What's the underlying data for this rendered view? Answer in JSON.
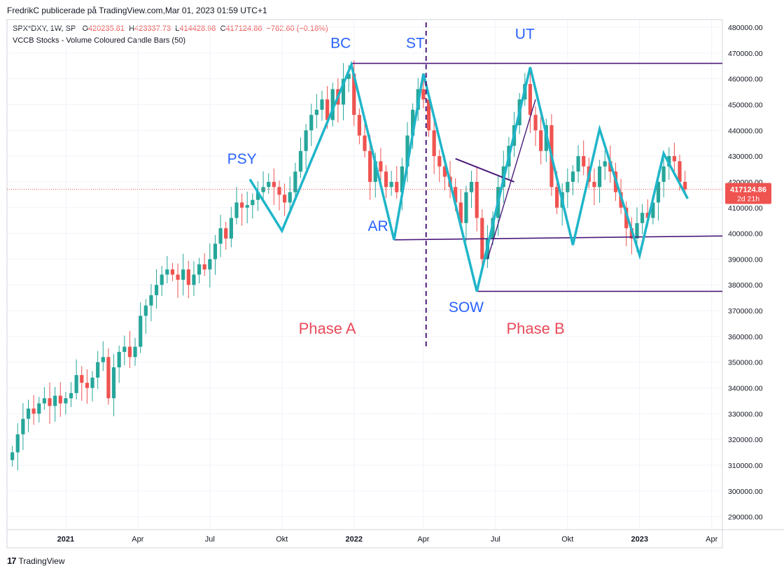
{
  "header": {
    "publisher": "FredrikC publicerade på TradingView.com,Mar 01, 2023 01:59 UTC+1"
  },
  "legend": {
    "symbol": "SPX*DXY, 1W, SP",
    "open_label": "O",
    "open_value": "420235.81",
    "high_label": "H",
    "high_value": "423337.73",
    "low_label": "L",
    "low_value": "414428.98",
    "close_label": "C",
    "close_value": "417124.86",
    "change": "−762.60 (−0.18%)",
    "indicator": "VCCB Stocks - Volume Coloured Candle Bars (50)"
  },
  "price_tag": {
    "value": "417124.86",
    "countdown": "2d 21h"
  },
  "brand": {
    "logo": "17",
    "name": "TradingView"
  },
  "chart_data": {
    "type": "candlestick",
    "colors": {
      "up": "#26a69a",
      "down": "#ef5350",
      "zigzag": "#1fb5c9",
      "levels": "#4a1a7a",
      "labels": "#2962ff",
      "phase": "#e84a5a"
    },
    "y_axis": {
      "min": 285000,
      "max": 483000,
      "ticks": [
        480000,
        470000,
        460000,
        450000,
        440000,
        430000,
        420000,
        410000,
        400000,
        390000,
        380000,
        370000,
        360000,
        350000,
        340000,
        330000,
        320000,
        310000,
        300000,
        290000
      ],
      "tick_labels": [
        "480000.00",
        "470000.00",
        "460000.00",
        "450000.00",
        "440000.00",
        "430000.00",
        "420000.00",
        "410000.00",
        "400000.00",
        "390000.00",
        "380000.00",
        "370000.00",
        "360000.00",
        "350000.00",
        "340000.00",
        "330000.00",
        "320000.00",
        "310000.00",
        "300000.00",
        "290000.00"
      ]
    },
    "x_axis": {
      "min_week": 0,
      "max_week": 134,
      "ticks": [
        {
          "week": 11,
          "label": "2021",
          "bold": true
        },
        {
          "week": 24.5,
          "label": "Apr",
          "bold": false
        },
        {
          "week": 38,
          "label": "Jul",
          "bold": false
        },
        {
          "week": 51.5,
          "label": "Okt",
          "bold": false
        },
        {
          "week": 65,
          "label": "2022",
          "bold": true
        },
        {
          "week": 78,
          "label": "Apr",
          "bold": false
        },
        {
          "week": 91.5,
          "label": "Jul",
          "bold": false
        },
        {
          "week": 105,
          "label": "Okt",
          "bold": false
        },
        {
          "week": 118.5,
          "label": "2023",
          "bold": true
        },
        {
          "week": 132,
          "label": "Apr",
          "bold": false
        }
      ]
    },
    "closes": [
      315000,
      322000,
      328000,
      332000,
      330000,
      334000,
      336000,
      333000,
      337000,
      334000,
      336000,
      338000,
      345000,
      342000,
      340000,
      344000,
      350000,
      352000,
      336000,
      348000,
      354000,
      356000,
      352000,
      356000,
      368000,
      372000,
      376000,
      380000,
      384000,
      386000,
      384000,
      382000,
      386000,
      380000,
      384000,
      388000,
      386000,
      390000,
      396000,
      402000,
      398000,
      406000,
      412000,
      410000,
      411000,
      413000,
      416000,
      418000,
      420000,
      418000,
      415000,
      412000,
      416000,
      424000,
      432000,
      440000,
      446000,
      448000,
      452000,
      444000,
      456000,
      450000,
      460000,
      462000,
      446000,
      438000,
      432000,
      420000,
      428000,
      424000,
      418000,
      420000,
      416000,
      426000,
      438000,
      448000,
      456000,
      452000,
      440000,
      430000,
      426000,
      422000,
      418000,
      412000,
      404000,
      416000,
      420000,
      406000,
      390000,
      398000,
      406000,
      418000,
      426000,
      434000,
      442000,
      452000,
      458000,
      446000,
      440000,
      432000,
      442000,
      418000,
      410000,
      416000,
      420000,
      424000,
      430000,
      426000,
      420000,
      418000,
      426000,
      428000,
      424000,
      416000,
      410000,
      402000,
      398000,
      404000,
      408000,
      406000,
      412000,
      420000,
      426000,
      430000,
      428000,
      420000,
      417125
    ],
    "zigzag": [
      {
        "week": 45.5,
        "price": 421000
      },
      {
        "week": 51.5,
        "price": 401000
      },
      {
        "week": 64.5,
        "price": 465500
      },
      {
        "week": 72.5,
        "price": 397500
      },
      {
        "week": 78,
        "price": 462000
      },
      {
        "week": 88,
        "price": 377500
      },
      {
        "week": 98,
        "price": 464500
      },
      {
        "week": 106,
        "price": 395500
      },
      {
        "week": 111,
        "price": 440500
      },
      {
        "week": 118.5,
        "price": 391500
      },
      {
        "week": 123,
        "price": 431000
      },
      {
        "week": 127.5,
        "price": 413500
      }
    ],
    "lines": [
      {
        "name": "resistance",
        "w1": 64.5,
        "p1": 466000,
        "w2": 134,
        "p2": 466000,
        "width": 1.6
      },
      {
        "name": "support-ar",
        "w1": 72.5,
        "p1": 397500,
        "w2": 134,
        "p2": 399000,
        "width": 1.6
      },
      {
        "name": "support-sow",
        "w1": 88,
        "p1": 377500,
        "w2": 134,
        "p2": 377500,
        "width": 1.6
      },
      {
        "name": "diag-1",
        "w1": 84,
        "p1": 429000,
        "w2": 95,
        "p2": 420000,
        "width": 2
      },
      {
        "name": "diag-2",
        "w1": 90,
        "p1": 390000,
        "w2": 99,
        "p2": 452000,
        "width": 1.4
      }
    ],
    "divider_week": 78.5,
    "annotations": [
      {
        "text": "PSY",
        "week": 44,
        "price": 427000,
        "kind": "label"
      },
      {
        "text": "BC",
        "week": 62.5,
        "price": 472000,
        "kind": "label"
      },
      {
        "text": "ST",
        "week": 76.5,
        "price": 472000,
        "kind": "label"
      },
      {
        "text": "UT",
        "week": 97,
        "price": 475500,
        "kind": "label"
      },
      {
        "text": "AR",
        "week": 69.5,
        "price": 401000,
        "kind": "label"
      },
      {
        "text": "SOW",
        "week": 86,
        "price": 369500,
        "kind": "label"
      },
      {
        "text": "Phase A",
        "week": 60,
        "price": 361000,
        "kind": "phase"
      },
      {
        "text": "Phase B",
        "week": 99,
        "price": 361000,
        "kind": "phase"
      }
    ]
  }
}
